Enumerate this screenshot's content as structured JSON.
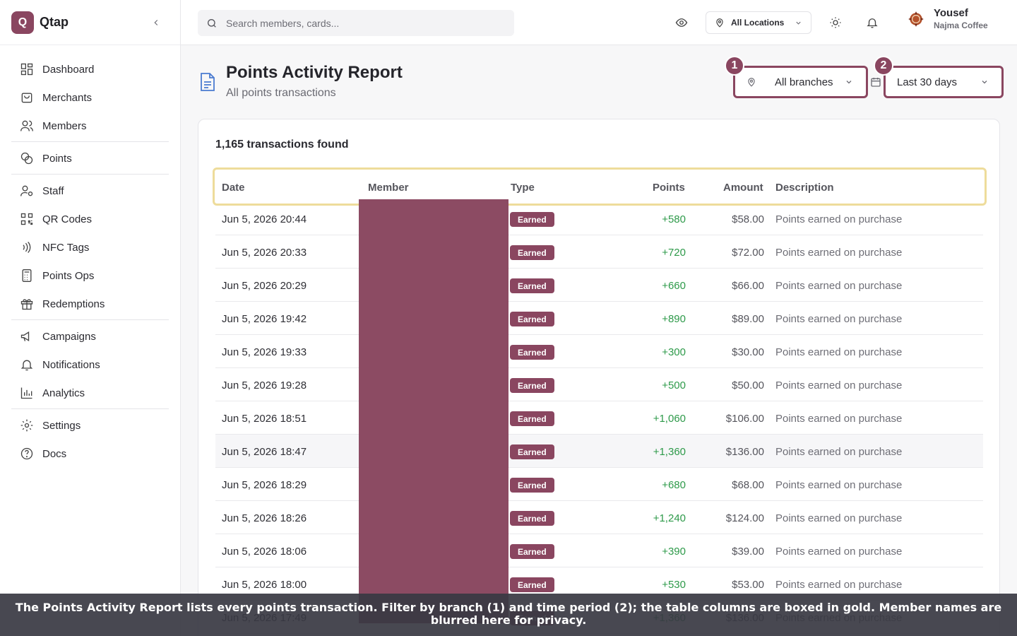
{
  "app": {
    "logo_letter": "Q",
    "name": "Qtap"
  },
  "sidebar": {
    "items": [
      {
        "label": "Dashboard",
        "icon": "dashboard-icon"
      },
      {
        "label": "Merchants",
        "icon": "store-icon"
      },
      {
        "label": "Members",
        "icon": "users-icon"
      },
      {
        "label": "Points",
        "icon": "coins-icon"
      },
      {
        "label": "Staff",
        "icon": "user-cog-icon"
      },
      {
        "label": "QR Codes",
        "icon": "qr-code-icon"
      },
      {
        "label": "NFC Tags",
        "icon": "nfc-icon"
      },
      {
        "label": "Points Ops",
        "icon": "calculator-icon"
      },
      {
        "label": "Redemptions",
        "icon": "gift-icon"
      },
      {
        "label": "Campaigns",
        "icon": "megaphone-icon"
      },
      {
        "label": "Notifications",
        "icon": "bell-icon"
      },
      {
        "label": "Analytics",
        "icon": "bar-chart-icon"
      },
      {
        "label": "Settings",
        "icon": "gear-icon"
      },
      {
        "label": "Docs",
        "icon": "help-circle-icon"
      }
    ]
  },
  "topbar": {
    "search_placeholder": "Search members, cards...",
    "location_label": "All Locations",
    "user_name": "Yousef",
    "user_org": "Najma Coffee"
  },
  "header": {
    "title": "Points Activity Report",
    "subtitle": "All points transactions",
    "branch_filter": "All branches",
    "date_filter": "Last 30 days",
    "marker_1": "1",
    "marker_2": "2"
  },
  "table": {
    "count_text": "1,165 transactions found",
    "columns": [
      "Date",
      "Member",
      "Type",
      "Points",
      "Amount",
      "Description"
    ],
    "rows": [
      {
        "date": "Jun 5, 2026 20:44",
        "type": "Earned",
        "points": "+580",
        "amount": "$58.00",
        "description": "Points earned on purchase"
      },
      {
        "date": "Jun 5, 2026 20:33",
        "type": "Earned",
        "points": "+720",
        "amount": "$72.00",
        "description": "Points earned on purchase"
      },
      {
        "date": "Jun 5, 2026 20:29",
        "type": "Earned",
        "points": "+660",
        "amount": "$66.00",
        "description": "Points earned on purchase"
      },
      {
        "date": "Jun 5, 2026 19:42",
        "type": "Earned",
        "points": "+890",
        "amount": "$89.00",
        "description": "Points earned on purchase"
      },
      {
        "date": "Jun 5, 2026 19:33",
        "type": "Earned",
        "points": "+300",
        "amount": "$30.00",
        "description": "Points earned on purchase"
      },
      {
        "date": "Jun 5, 2026 19:28",
        "type": "Earned",
        "points": "+500",
        "amount": "$50.00",
        "description": "Points earned on purchase"
      },
      {
        "date": "Jun 5, 2026 18:51",
        "type": "Earned",
        "points": "+1,060",
        "amount": "$106.00",
        "description": "Points earned on purchase"
      },
      {
        "date": "Jun 5, 2026 18:47",
        "type": "Earned",
        "points": "+1,360",
        "amount": "$136.00",
        "description": "Points earned on purchase"
      },
      {
        "date": "Jun 5, 2026 18:29",
        "type": "Earned",
        "points": "+680",
        "amount": "$68.00",
        "description": "Points earned on purchase"
      },
      {
        "date": "Jun 5, 2026 18:26",
        "type": "Earned",
        "points": "+1,240",
        "amount": "$124.00",
        "description": "Points earned on purchase"
      },
      {
        "date": "Jun 5, 2026 18:06",
        "type": "Earned",
        "points": "+390",
        "amount": "$39.00",
        "description": "Points earned on purchase"
      },
      {
        "date": "Jun 5, 2026 18:00",
        "type": "Earned",
        "points": "+530",
        "amount": "$53.00",
        "description": "Points earned on purchase"
      },
      {
        "date": "Jun 5, 2026 17:49",
        "type": "Earned",
        "points": "+1,360",
        "amount": "$136.00",
        "description": "Points earned on purchase"
      }
    ]
  },
  "caption": "The Points Activity Report lists every points transaction. Filter by branch (1) and time period (2); the table columns are boxed in gold. Member names are blurred here for privacy.",
  "colors": {
    "brand": "#8a4660",
    "highlight_gold": "#eedc9b",
    "positive": "#2e9a4a",
    "redaction": "#8c4b63"
  }
}
